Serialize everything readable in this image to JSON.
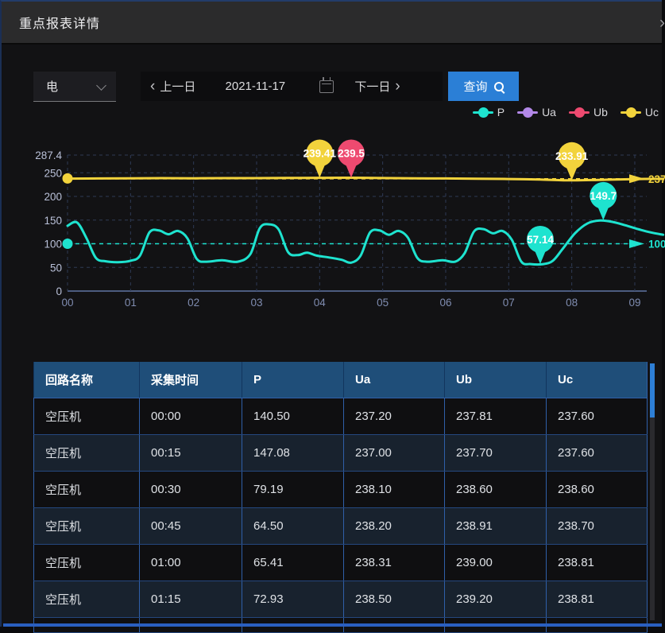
{
  "window": {
    "title": "重点报表详情"
  },
  "icons": {
    "collapse_chevron": "›",
    "chevron_left": "‹",
    "chevron_right": "›"
  },
  "toolbar": {
    "type_select_value": "电",
    "prev_label": "上一日",
    "date_value": "2021-11-17",
    "next_label": "下一日",
    "query_label": "查询"
  },
  "chart_data": {
    "type": "line",
    "x_ticks": [
      "00",
      "01",
      "02",
      "03",
      "04",
      "05",
      "06",
      "07",
      "08",
      "09"
    ],
    "y_tick_values": [
      287.4,
      250,
      200,
      150,
      100,
      50,
      0
    ],
    "y_tick_labels": [
      "287.4",
      "250",
      "200",
      "150",
      "100",
      "50",
      "0"
    ],
    "ylim": [
      0,
      287.4
    ],
    "grid": true,
    "legend_position": "top-right",
    "legend": [
      {
        "name": "P",
        "color": "#1ee3cf"
      },
      {
        "name": "Ua",
        "color": "#b388e8"
      },
      {
        "name": "Ub",
        "color": "#ee4a70"
      },
      {
        "name": "Uc",
        "color": "#f2d33c"
      }
    ],
    "series": [
      {
        "name": "Uc",
        "color": "#f2d33c",
        "width": 3,
        "points": [
          [
            0,
            237.6
          ],
          [
            0.5,
            237.9
          ],
          [
            1,
            238.3
          ],
          [
            1.5,
            238.6
          ],
          [
            2,
            238.4
          ],
          [
            2.5,
            238.7
          ],
          [
            3,
            238.6
          ],
          [
            3.5,
            239.0
          ],
          [
            4,
            239.4
          ],
          [
            4.5,
            239.5
          ],
          [
            5,
            238.9
          ],
          [
            5.5,
            238.3
          ],
          [
            6,
            237.9
          ],
          [
            6.5,
            237.4
          ],
          [
            7,
            236.8
          ],
          [
            7.5,
            235.8
          ],
          [
            8,
            233.9
          ],
          [
            8.5,
            235.2
          ],
          [
            9,
            236.6
          ],
          [
            9.45,
            237.2
          ]
        ]
      },
      {
        "name": "P",
        "color": "#1ee3cf",
        "width": 3,
        "points": [
          [
            0,
            138
          ],
          [
            0.15,
            145
          ],
          [
            0.3,
            112
          ],
          [
            0.45,
            70
          ],
          [
            0.6,
            63
          ],
          [
            0.8,
            61
          ],
          [
            1.0,
            64
          ],
          [
            1.15,
            75
          ],
          [
            1.3,
            124
          ],
          [
            1.45,
            128
          ],
          [
            1.6,
            120
          ],
          [
            1.75,
            127
          ],
          [
            1.9,
            112
          ],
          [
            2.05,
            68
          ],
          [
            2.2,
            62
          ],
          [
            2.45,
            65
          ],
          [
            2.7,
            62
          ],
          [
            2.9,
            78
          ],
          [
            3.05,
            133
          ],
          [
            3.2,
            141
          ],
          [
            3.35,
            130
          ],
          [
            3.5,
            82
          ],
          [
            3.65,
            76
          ],
          [
            3.8,
            81
          ],
          [
            3.95,
            75
          ],
          [
            4.15,
            71
          ],
          [
            4.35,
            66
          ],
          [
            4.5,
            60
          ],
          [
            4.65,
            75
          ],
          [
            4.8,
            124
          ],
          [
            4.95,
            128
          ],
          [
            5.1,
            119
          ],
          [
            5.25,
            127
          ],
          [
            5.4,
            113
          ],
          [
            5.55,
            70
          ],
          [
            5.7,
            62
          ],
          [
            5.95,
            65
          ],
          [
            6.15,
            62
          ],
          [
            6.3,
            80
          ],
          [
            6.45,
            126
          ],
          [
            6.6,
            131
          ],
          [
            6.75,
            122
          ],
          [
            6.9,
            127
          ],
          [
            7.05,
            108
          ],
          [
            7.2,
            62
          ],
          [
            7.35,
            57
          ],
          [
            7.55,
            57
          ],
          [
            7.7,
            64
          ],
          [
            7.85,
            88
          ],
          [
            8.05,
            122
          ],
          [
            8.25,
            143
          ],
          [
            8.45,
            149
          ],
          [
            8.65,
            146
          ],
          [
            8.85,
            139
          ],
          [
            9.05,
            131
          ],
          [
            9.25,
            124
          ],
          [
            9.45,
            119
          ]
        ]
      }
    ],
    "ref_lines": [
      {
        "color": "#f2d33c",
        "value": 237.3,
        "end_label": "237",
        "start_dot": 238.0
      },
      {
        "color": "#1ee3cf",
        "value": 100,
        "end_label": "100",
        "start_dot": 100
      }
    ],
    "markers": [
      {
        "label": "239.41",
        "color": "#f2d33c",
        "hour": 4.0,
        "at": 239.4
      },
      {
        "label": "239.5",
        "color": "#ee4a70",
        "hour": 4.5,
        "at": 239.5
      },
      {
        "label": "233.91",
        "color": "#f2d33c",
        "hour": 8.0,
        "at": 234.0
      },
      {
        "label": "149.7",
        "color": "#1ee3cf",
        "hour": 8.5,
        "at": 149.7
      },
      {
        "label": "57.14",
        "color": "#1ee3cf",
        "hour": 7.5,
        "at": 57.14
      }
    ]
  },
  "table": {
    "columns": [
      "回路名称",
      "采集时间",
      "P",
      "Ua",
      "Ub",
      "Uc"
    ],
    "rows": [
      [
        "空压机",
        "00:00",
        "140.50",
        "237.20",
        "237.81",
        "237.60"
      ],
      [
        "空压机",
        "00:15",
        "147.08",
        "237.00",
        "237.70",
        "237.60"
      ],
      [
        "空压机",
        "00:30",
        "79.19",
        "238.10",
        "238.60",
        "238.60"
      ],
      [
        "空压机",
        "00:45",
        "64.50",
        "238.20",
        "238.91",
        "238.70"
      ],
      [
        "空压机",
        "01:00",
        "65.41",
        "238.31",
        "239.00",
        "238.81"
      ],
      [
        "空压机",
        "01:15",
        "72.93",
        "238.50",
        "239.20",
        "238.81"
      ]
    ]
  }
}
